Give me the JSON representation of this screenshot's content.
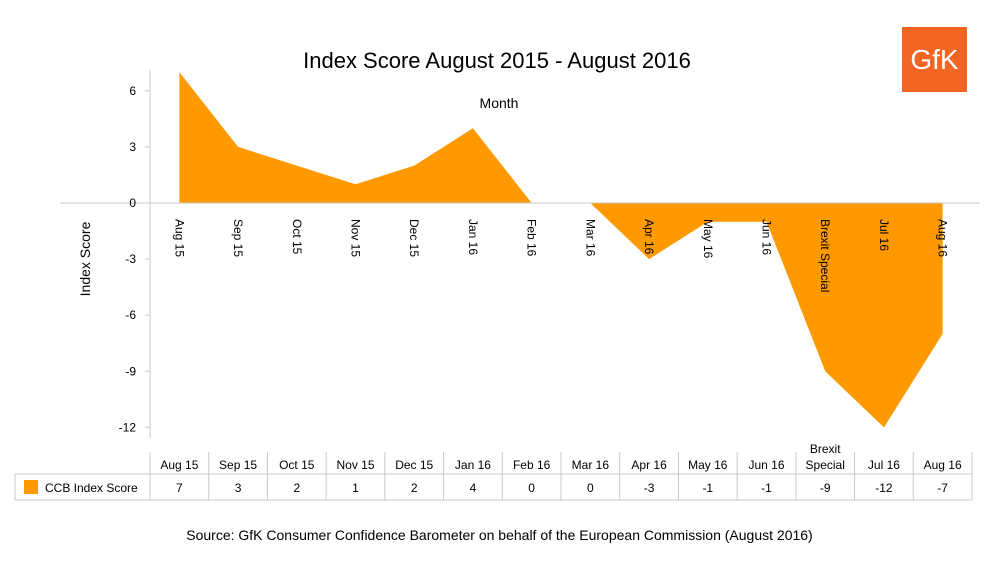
{
  "chart_data": {
    "type": "area",
    "title": "Index Score August 2015 - August 2016",
    "xlabel": "Month",
    "ylabel": "Index Score",
    "ylim": [
      -12,
      6
    ],
    "yticks": [
      6,
      3,
      0,
      -3,
      -6,
      -9,
      -12
    ],
    "categories": [
      "Aug 15",
      "Sep 15",
      "Oct 15",
      "Nov 15",
      "Dec 15",
      "Jan 16",
      "Feb 16",
      "Mar 16",
      "Apr 16",
      "May 16",
      "Jun 16",
      "Brexit Special",
      "Jul 16",
      "Aug 16"
    ],
    "series": [
      {
        "name": "CCB Index Score",
        "values": [
          7,
          3,
          2,
          1,
          2,
          4,
          0,
          0,
          -3,
          -1,
          -1,
          -9,
          -12,
          -7
        ]
      }
    ],
    "grid": false,
    "legend": "data-table",
    "colors": {
      "area": "#FF9900",
      "axis": "#C8C8C8"
    }
  },
  "table": {
    "headers": [
      "Aug 15",
      "Sep 15",
      "Oct 15",
      "Nov 15",
      "Dec 15",
      "Jan 16",
      "Feb 16",
      "Mar 16",
      "Apr 16",
      "May 16",
      "Jun 16",
      "Brexit Special",
      "Jul 16",
      "Aug 16"
    ],
    "series_label": "CCB Index Score"
  },
  "logo": {
    "text": "GfK",
    "color": "#F26522"
  },
  "source": "Source: GfK Consumer Confidence Barometer on behalf of the European Commission (August 2016)"
}
